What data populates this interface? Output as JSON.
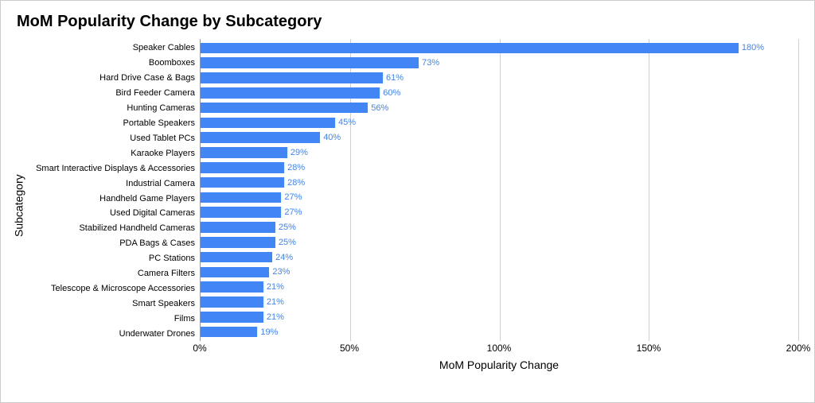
{
  "chart": {
    "title": "MoM Popularity Change by Subcategory",
    "type": "bar-horizontal",
    "x_axis_label": "MoM Popularity Change",
    "y_axis_label": "Subcategory",
    "xlim": [
      0,
      200
    ],
    "xtick_step": 50,
    "xtick_suffix": "%",
    "bar_color": "#4285f4",
    "label_color": "#4285f4",
    "grid_color": "#d0d0d0",
    "background_color": "#ffffff",
    "title_fontsize": 20,
    "axis_label_fontsize": 14,
    "tick_fontsize": 12,
    "category_fontsize": 11,
    "value_label_fontsize": 11,
    "bar_height_ratio": 0.72,
    "categories": [
      "Speaker Cables",
      "Boomboxes",
      "Hard Drive Case & Bags",
      "Bird Feeder Camera",
      "Hunting Cameras",
      "Portable Speakers",
      "Used Tablet PCs",
      "Karaoke Players",
      "Smart Interactive Displays & Accessories",
      "Industrial Camera",
      "Handheld Game Players",
      "Used Digital Cameras",
      "Stabilized Handheld Cameras",
      "PDA Bags & Cases",
      "PC Stations",
      "Camera Filters",
      "Telescope & Microscope Accessories",
      "Smart Speakers",
      "Films",
      "Underwater Drones"
    ],
    "values": [
      180,
      73,
      61,
      60,
      56,
      45,
      40,
      29,
      28,
      28,
      27,
      27,
      25,
      25,
      24,
      23,
      21,
      21,
      21,
      19
    ],
    "value_suffix": "%"
  }
}
